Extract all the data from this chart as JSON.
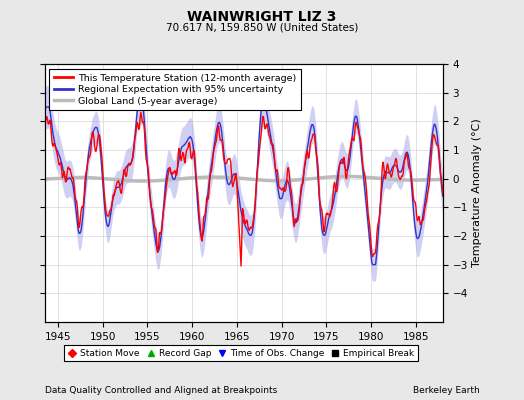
{
  "title": "WAINWRIGHT LIZ 3",
  "subtitle": "70.617 N, 159.850 W (United States)",
  "xlabel_years": [
    1945,
    1950,
    1955,
    1960,
    1965,
    1970,
    1975,
    1980,
    1985
  ],
  "xlim": [
    1943.5,
    1988.0
  ],
  "ylim": [
    -5,
    4
  ],
  "yticks": [
    -4,
    -3,
    -2,
    -1,
    0,
    1,
    2,
    3,
    4
  ],
  "ylabel": "Temperature Anomaly (°C)",
  "footer_left": "Data Quality Controlled and Aligned at Breakpoints",
  "footer_right": "Berkeley Earth",
  "legend_items": [
    {
      "label": "This Temperature Station (12-month average)",
      "color": "#FF0000"
    },
    {
      "label": "Regional Expectation with 95% uncertainty",
      "color": "#3333CC"
    },
    {
      "label": "Global Land (5-year average)",
      "color": "#AAAAAA"
    }
  ],
  "scatter_legend": [
    {
      "label": "Station Move",
      "marker": "D",
      "color": "#FF0000"
    },
    {
      "label": "Record Gap",
      "marker": "^",
      "color": "#00AA00"
    },
    {
      "label": "Time of Obs. Change",
      "marker": "v",
      "color": "#0000FF"
    },
    {
      "label": "Empirical Break",
      "marker": "s",
      "color": "#000000"
    }
  ],
  "bg_color": "#E8E8E8",
  "plot_bg_color": "#FFFFFF",
  "uncertainty_color": "#AAAAEE",
  "uncertainty_alpha": 0.55,
  "global_color": "#BBBBBB"
}
